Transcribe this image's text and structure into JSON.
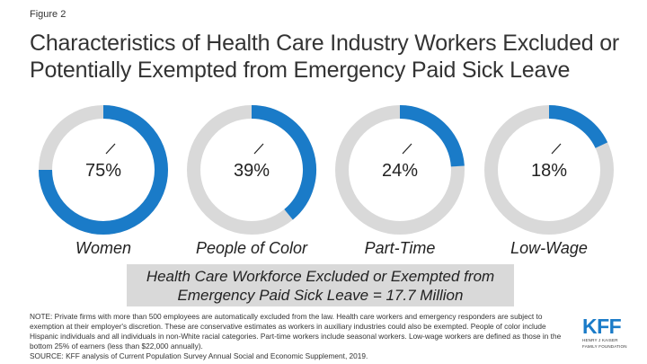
{
  "figure_label": "Figure 2",
  "title": "Characteristics of Health Care Industry Workers Excluded or Potentially Exempted from Emergency Paid Sick Leave",
  "colors": {
    "fill": "#1a7bc8",
    "track": "#d9d9d9",
    "tick": "#222222"
  },
  "chart_data": {
    "type": "pie",
    "title": "Characteristics of Health Care Industry Workers Excluded or Potentially Exempted from Emergency Paid Sick Leave",
    "series": [
      {
        "name": "Women",
        "value": 75,
        "label": "75%"
      },
      {
        "name": "People of Color",
        "value": 39,
        "label": "39%"
      },
      {
        "name": "Part-Time",
        "value": 24,
        "label": "24%"
      },
      {
        "name": "Low-Wage",
        "value": 18,
        "label": "18%"
      }
    ]
  },
  "total": {
    "line1": "Health Care Workforce Excluded or Exempted from",
    "line2": "Emergency Paid Sick Leave = 17.7 Million"
  },
  "note": "NOTE: Private firms with more than 500 employees are automatically excluded from the law. Health care workers and emergency responders are subject to exemption at their employer's discretion. These are conservative estimates as workers in auxiliary industries could also be exempted. People of color include Hispanic individuals and all individuals in non-White racial categories. Part-time workers include seasonal workers. Low-wage workers are defined as those in the bottom 25% of earners (less than $22,000 annually).",
  "source": "SOURCE: KFF analysis of Current Population Survey Annual Social and Economic Supplement, 2019.",
  "logo": {
    "main": "KFF",
    "sub_line1": "HENRY J KAISER",
    "sub_line2": "FAMILY FOUNDATION"
  }
}
